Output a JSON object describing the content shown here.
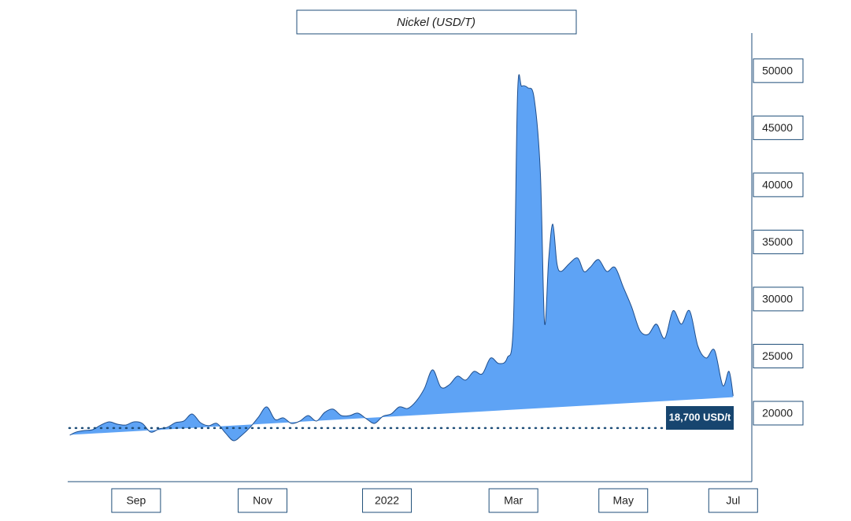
{
  "chart_data": {
    "type": "area",
    "title": "Nickel (USD/T)",
    "x": [
      1,
      4,
      8,
      12,
      16,
      20,
      24,
      28,
      32,
      36,
      40,
      44,
      48,
      52,
      56,
      60,
      64,
      68,
      72,
      76,
      80,
      84,
      88,
      92,
      96,
      100,
      104,
      108,
      112,
      116,
      120,
      124,
      128,
      132,
      136,
      140,
      144,
      148,
      152,
      156,
      160,
      164,
      168,
      172,
      176,
      180,
      184,
      188,
      192,
      196,
      200,
      204,
      208,
      212,
      215,
      217,
      219,
      222,
      225,
      228,
      230,
      232,
      234,
      236,
      238,
      242,
      246,
      249,
      252,
      256,
      260,
      264,
      268,
      272,
      276,
      280,
      284,
      288,
      292,
      296,
      300,
      304,
      308,
      312,
      316,
      319,
      321
    ],
    "values": [
      18070,
      18340,
      18480,
      18550,
      18960,
      19240,
      19030,
      18960,
      19240,
      19100,
      18340,
      18620,
      18760,
      19170,
      19310,
      19930,
      19170,
      18900,
      19100,
      18280,
      17590,
      18070,
      18760,
      19650,
      20550,
      19450,
      19590,
      19100,
      19310,
      19790,
      19310,
      20070,
      20350,
      19790,
      19790,
      20000,
      19520,
      19100,
      19720,
      19930,
      20550,
      20410,
      21030,
      22140,
      23800,
      22280,
      22480,
      23240,
      22900,
      23660,
      23450,
      24830,
      24350,
      24830,
      27940,
      47950,
      48640,
      48500,
      47600,
      41050,
      27940,
      33460,
      36560,
      33110,
      32420,
      33110,
      33590,
      32420,
      32770,
      33460,
      32420,
      32770,
      31040,
      29320,
      27250,
      26900,
      27800,
      26560,
      28970,
      27800,
      28970,
      25870,
      24830,
      25520,
      22420,
      23660,
      21520
    ],
    "baseline": [
      18100,
      21400
    ],
    "color": "#5ea3f5",
    "line_color": "#1f4e8c",
    "xlim": [
      0,
      330
    ],
    "xticks": [
      {
        "value": 33,
        "label": "Sep"
      },
      {
        "value": 94,
        "label": "Nov"
      },
      {
        "value": 154,
        "label": "2022"
      },
      {
        "value": 215,
        "label": "Mar"
      },
      {
        "value": 268,
        "label": "May"
      },
      {
        "value": 321,
        "label": "Jul"
      }
    ],
    "ylim": [
      14000,
      53300
    ],
    "yticks": [
      20000,
      25000,
      30000,
      35000,
      40000,
      45000,
      50000
    ],
    "reference_line": 18700,
    "annotation": "18,700 USD/t"
  }
}
